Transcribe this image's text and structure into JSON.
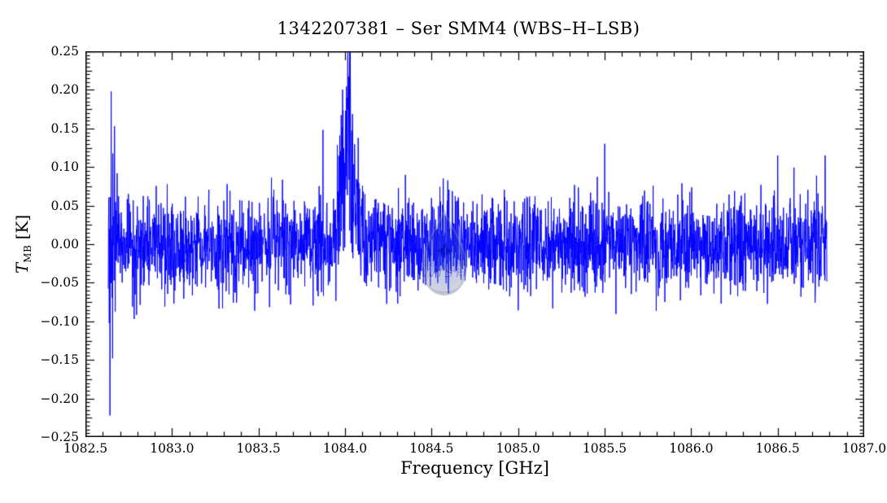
{
  "figure": {
    "title": "1342207381 – Ser SMM4 (WBS–H–LSB)",
    "background_color": "#ffffff"
  },
  "axes": {
    "xlabel": "Frequency [GHz]",
    "ylabel": {
      "symbol": "T",
      "subscript": "MB",
      "unit": "[K]"
    },
    "x_ticks": [
      {
        "value": 1082.5,
        "label": "1082.5"
      },
      {
        "value": 1083.0,
        "label": "1083.0"
      },
      {
        "value": 1083.5,
        "label": "1083.5"
      },
      {
        "value": 1084.0,
        "label": "1084.0"
      },
      {
        "value": 1084.5,
        "label": "1084.5"
      },
      {
        "value": 1085.0,
        "label": "1085.0"
      },
      {
        "value": 1085.5,
        "label": "1085.5"
      },
      {
        "value": 1086.0,
        "label": "1086.0"
      },
      {
        "value": 1086.5,
        "label": "1086.5"
      },
      {
        "value": 1087.0,
        "label": "1087.0"
      }
    ],
    "y_ticks": [
      {
        "value": 0.25,
        "label": "0.25"
      },
      {
        "value": 0.2,
        "label": "0.20"
      },
      {
        "value": 0.15,
        "label": "0.15"
      },
      {
        "value": 0.1,
        "label": "0.10"
      },
      {
        "value": 0.05,
        "label": "0.05"
      },
      {
        "value": 0.0,
        "label": "0.00"
      },
      {
        "value": -0.05,
        "label": "−0.05"
      },
      {
        "value": -0.1,
        "label": "−0.10"
      },
      {
        "value": -0.15,
        "label": "−0.15"
      },
      {
        "value": -0.2,
        "label": "−0.20"
      },
      {
        "value": -0.25,
        "label": "−0.25"
      }
    ]
  },
  "watermark": {
    "text": "WISH"
  },
  "chart_data": {
    "type": "line",
    "subtype": "radio-spectrum-noise-trace",
    "title": "1342207381 – Ser SMM4 (WBS–H–LSB)",
    "xlabel": "Frequency [GHz]",
    "ylabel": "T_MB [K]",
    "xlim": [
      1082.5,
      1087.0
    ],
    "ylim": [
      -0.25,
      0.25
    ],
    "x_major_tick_GHz": 0.5,
    "x_minor_tick_GHz": 0.1,
    "y_major_tick_K": 0.05,
    "y_minor_tick_K": 0.005,
    "grid": false,
    "legend": false,
    "line_color": "#0000ff",
    "axis_color": "#000000",
    "data_fmin_GHz": 1082.632,
    "data_fmax_GHz": 1086.784,
    "n_channels": 3000,
    "baseline_K": 0.0,
    "noise": {
      "rms_K": 0.031,
      "left_edge_boost": 2.0,
      "left_edge_efold_GHz": 0.02,
      "right_edge_boost": 0.7,
      "right_edge_efold_GHz": 0.02,
      "line_region_boost": 1.1,
      "line_region_sigma_GHz": 0.05
    },
    "emission_lines": [
      {
        "center_GHz": 1084.02,
        "peak_K": 0.085,
        "sigma_GHz": 0.04
      },
      {
        "center_GHz": 1084.02,
        "peak_K": 0.1,
        "sigma_GHz": 0.01
      }
    ],
    "notable_spikes": [
      {
        "freq_GHz": 1082.641,
        "T_K": -0.222
      },
      {
        "freq_GHz": 1082.649,
        "T_K": 0.198
      },
      {
        "freq_GHz": 1082.657,
        "T_K": -0.148
      },
      {
        "freq_GHz": 1082.668,
        "T_K": 0.153
      },
      {
        "freq_GHz": 1083.873,
        "T_K": 0.148
      },
      {
        "freq_GHz": 1084.013,
        "T_K": 0.19
      },
      {
        "freq_GHz": 1084.021,
        "T_K": 0.214
      },
      {
        "freq_GHz": 1085.5,
        "T_K": 0.13
      },
      {
        "freq_GHz": 1086.5,
        "T_K": 0.115
      },
      {
        "freq_GHz": 1086.775,
        "T_K": 0.115
      }
    ],
    "seed": 1342207381
  }
}
